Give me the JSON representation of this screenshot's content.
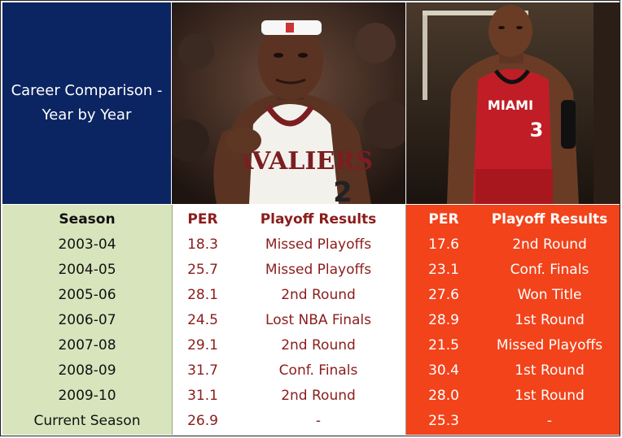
{
  "title": "Career Comparison - Year by Year",
  "colors": {
    "title_bg": "#0b2462",
    "season_bg": "#d8e4bc",
    "lbj_text": "#8b1c1c",
    "dw_bg": "#f2431b"
  },
  "headers": {
    "season": "Season",
    "per": "PER",
    "playoffs": "Playoff Results"
  },
  "photos": {
    "left": {
      "jersey_text": "CAVALIERS",
      "number": "2"
    },
    "right": {
      "jersey_text": "MIAMI",
      "number": "3"
    }
  },
  "rows": [
    {
      "season": "2003-04",
      "lbj_per": "18.3",
      "lbj_result": "Missed Playoffs",
      "dw_per": "17.6",
      "dw_result": "2nd Round"
    },
    {
      "season": "2004-05",
      "lbj_per": "25.7",
      "lbj_result": "Missed Playoffs",
      "dw_per": "23.1",
      "dw_result": "Conf. Finals"
    },
    {
      "season": "2005-06",
      "lbj_per": "28.1",
      "lbj_result": "2nd Round",
      "dw_per": "27.6",
      "dw_result": "Won Title"
    },
    {
      "season": "2006-07",
      "lbj_per": "24.5",
      "lbj_result": "Lost NBA Finals",
      "dw_per": "28.9",
      "dw_result": "1st Round"
    },
    {
      "season": "2007-08",
      "lbj_per": "29.1",
      "lbj_result": "2nd Round",
      "dw_per": "21.5",
      "dw_result": "Missed Playoffs"
    },
    {
      "season": "2008-09",
      "lbj_per": "31.7",
      "lbj_result": "Conf. Finals",
      "dw_per": "30.4",
      "dw_result": "1st Round"
    },
    {
      "season": "2009-10",
      "lbj_per": "31.1",
      "lbj_result": "2nd Round",
      "dw_per": "28.0",
      "dw_result": "1st Round"
    },
    {
      "season": "Current Season",
      "lbj_per": "26.9",
      "lbj_result": "-",
      "dw_per": "25.3",
      "dw_result": "-"
    }
  ]
}
